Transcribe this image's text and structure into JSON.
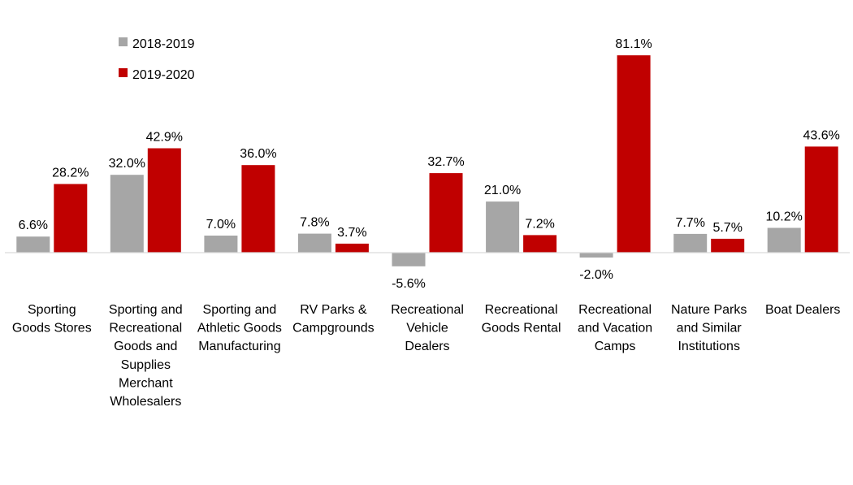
{
  "chart_data": {
    "type": "bar",
    "categories": [
      [
        "Sporting",
        "Goods Stores"
      ],
      [
        "Sporting and",
        "Recreational",
        "Goods and",
        "Supplies",
        "Merchant",
        "Wholesalers"
      ],
      [
        "Sporting and",
        "Athletic Goods",
        "Manufacturing"
      ],
      [
        "RV Parks &",
        "Campgrounds"
      ],
      [
        "Recreational",
        "Vehicle",
        "Dealers"
      ],
      [
        "Recreational",
        "Goods Rental"
      ],
      [
        "Recreational",
        "and Vacation",
        "Camps"
      ],
      [
        "Nature Parks",
        "and Similar",
        "Institutions"
      ],
      [
        "Boat Dealers"
      ]
    ],
    "series": [
      {
        "name": "2018-2019",
        "color": "#a6a6a6",
        "values": [
          6.6,
          32.0,
          7.0,
          7.8,
          -5.6,
          21.0,
          -2.0,
          7.7,
          10.2
        ],
        "labels": [
          "6.6%",
          "32.0%",
          "7.0%",
          "7.8%",
          "-5.6%",
          "21.0%",
          "-2.0%",
          "7.7%",
          "10.2%"
        ]
      },
      {
        "name": "2019-2020",
        "color": "#c00000",
        "values": [
          28.2,
          42.9,
          36.0,
          3.7,
          32.7,
          7.2,
          81.1,
          5.7,
          43.6
        ],
        "labels": [
          "28.2%",
          "42.9%",
          "36.0%",
          "3.7%",
          "32.7%",
          "7.2%",
          "81.1%",
          "5.7%",
          "43.6%"
        ]
      }
    ],
    "title": "",
    "xlabel": "",
    "ylabel": "",
    "ylim": [
      -10,
      90
    ],
    "grid": false,
    "legend_position": "top-left",
    "axis_color": "#d9d9d9"
  }
}
